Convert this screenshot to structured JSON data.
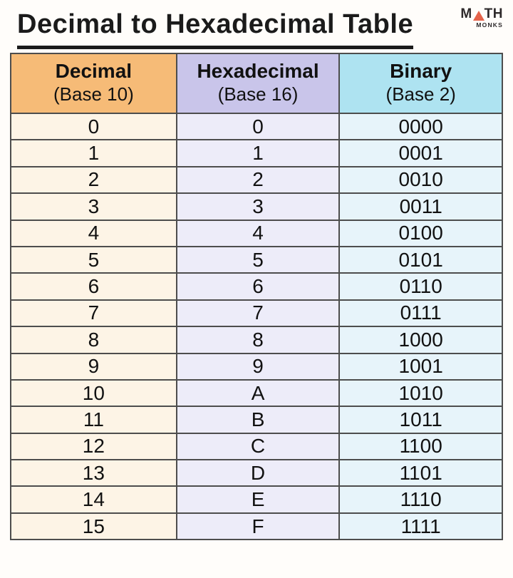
{
  "page": {
    "title": "Decimal to Hexadecimal Table",
    "background": "#fffdfa"
  },
  "logo": {
    "m": "M",
    "th": "TH",
    "monks": "MONKS",
    "triangle_icon": "orange-triangle",
    "text_color": "#2e2a2b",
    "accent_color": "#e5634a"
  },
  "style": {
    "border_color": "#4d4d4d",
    "title_underline_color": "#1b1b1b",
    "header_colors": [
      "#f6bb77",
      "#c9c5ea",
      "#aee3f1"
    ],
    "body_colors": [
      "#fdf4e6",
      "#edecf9",
      "#e7f4fa"
    ]
  },
  "chart_data": {
    "type": "table",
    "title": "Decimal to Hexadecimal Table",
    "columns": [
      {
        "label": "Decimal",
        "sublabel": "(Base 10)"
      },
      {
        "label": "Hexadecimal",
        "sublabel": "(Base 16)"
      },
      {
        "label": "Binary",
        "sublabel": "(Base 2)"
      }
    ],
    "rows": [
      [
        "0",
        "0",
        "0000"
      ],
      [
        "1",
        "1",
        "0001"
      ],
      [
        "2",
        "2",
        "0010"
      ],
      [
        "3",
        "3",
        "0011"
      ],
      [
        "4",
        "4",
        "0100"
      ],
      [
        "5",
        "5",
        "0101"
      ],
      [
        "6",
        "6",
        "0110"
      ],
      [
        "7",
        "7",
        "0111"
      ],
      [
        "8",
        "8",
        "1000"
      ],
      [
        "9",
        "9",
        "1001"
      ],
      [
        "10",
        "A",
        "1010"
      ],
      [
        "11",
        "B",
        "1011"
      ],
      [
        "12",
        "C",
        "1100"
      ],
      [
        "13",
        "D",
        "1101"
      ],
      [
        "14",
        "E",
        "1110"
      ],
      [
        "15",
        "F",
        "1111"
      ]
    ]
  }
}
